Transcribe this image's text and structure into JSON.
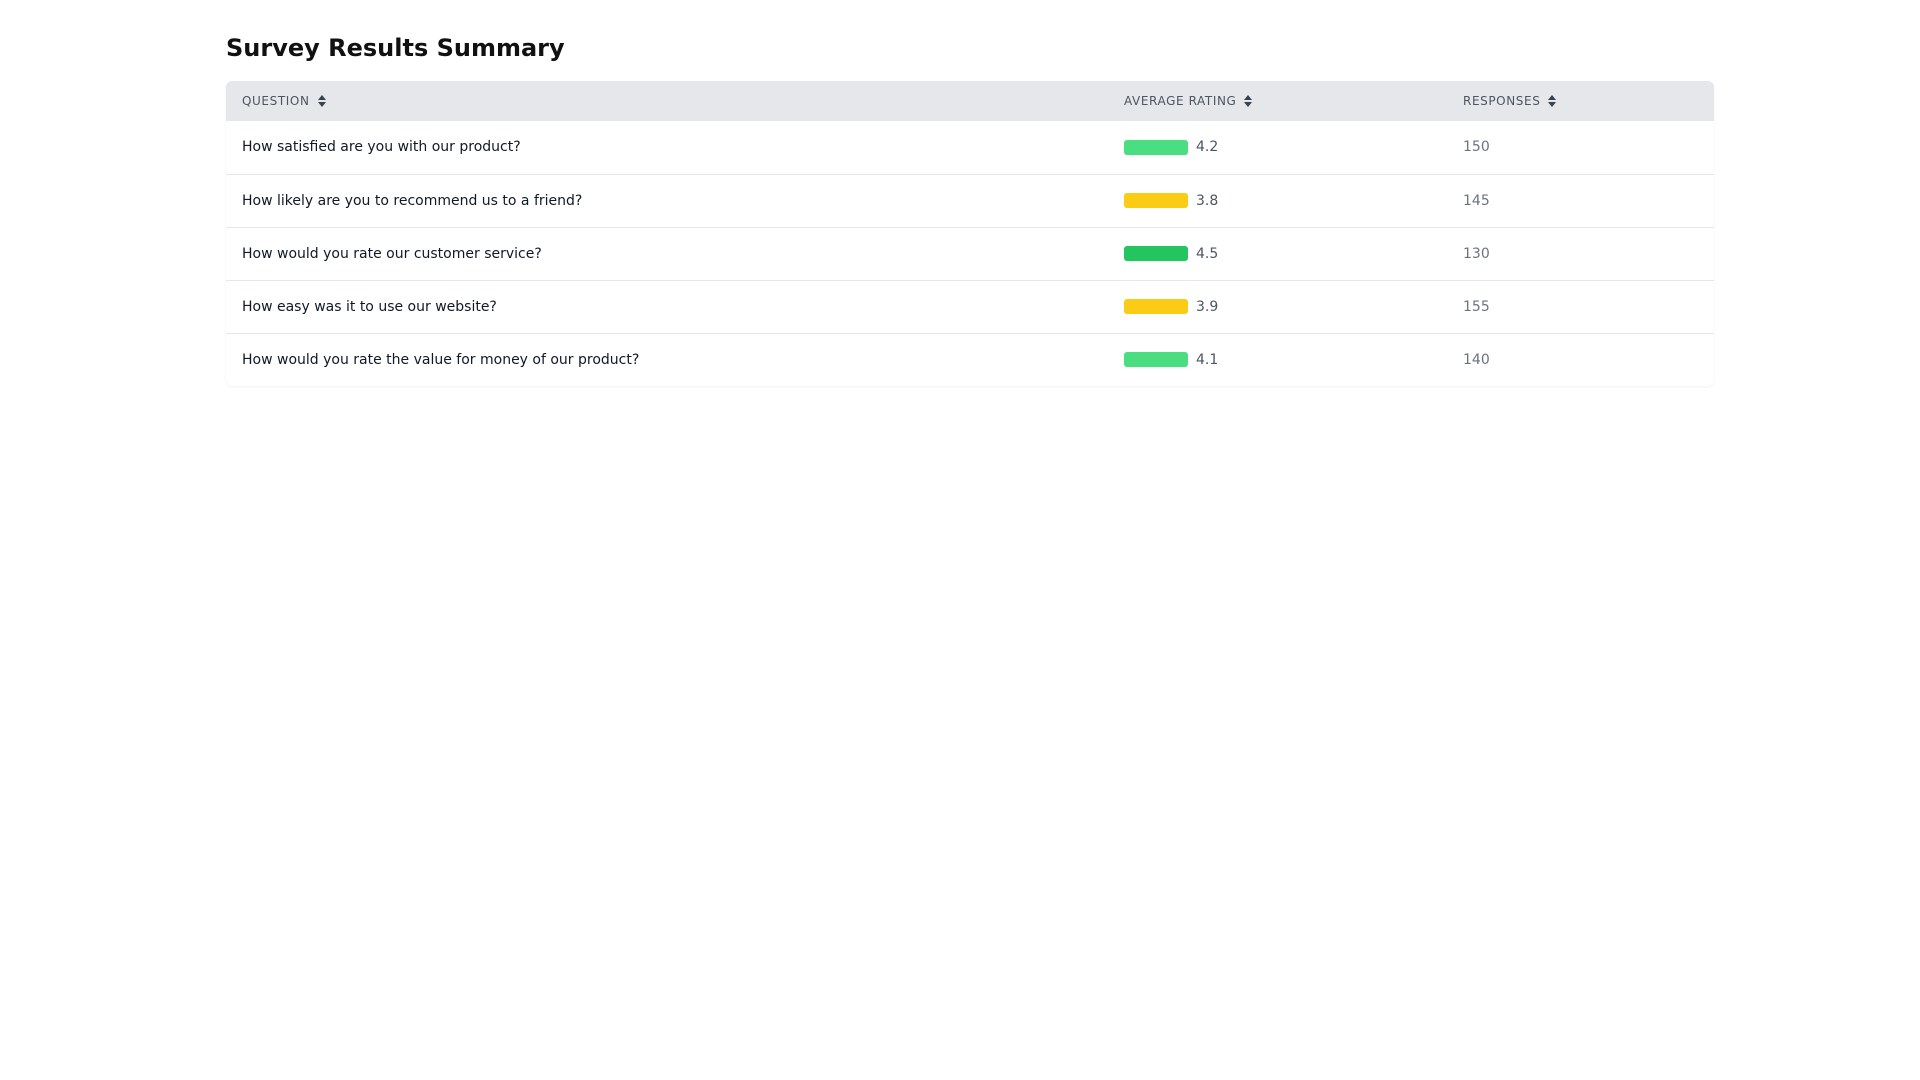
{
  "page": {
    "title": "Survey Results Summary"
  },
  "table": {
    "headers": {
      "question": "QUESTION",
      "average_rating": "AVERAGE RATING",
      "responses": "RESPONSES"
    },
    "sort_icon": "sort-updown-icon",
    "rows": [
      {
        "question": "How satisfied are you with our product?",
        "rating": "4.2",
        "responses": "150",
        "bar_color": "#4ade80"
      },
      {
        "question": "How likely are you to recommend us to a friend?",
        "rating": "3.8",
        "responses": "145",
        "bar_color": "#facc15"
      },
      {
        "question": "How would you rate our customer service?",
        "rating": "4.5",
        "responses": "130",
        "bar_color": "#22c55e"
      },
      {
        "question": "How easy was it to use our website?",
        "rating": "3.9",
        "responses": "155",
        "bar_color": "#facc15"
      },
      {
        "question": "How would you rate the value for money of our product?",
        "rating": "4.1",
        "responses": "140",
        "bar_color": "#4ade80"
      }
    ]
  },
  "colors": {
    "header_bg": "#e5e7eb",
    "rating_high": "#22c55e",
    "rating_good": "#4ade80",
    "rating_mid": "#facc15"
  }
}
